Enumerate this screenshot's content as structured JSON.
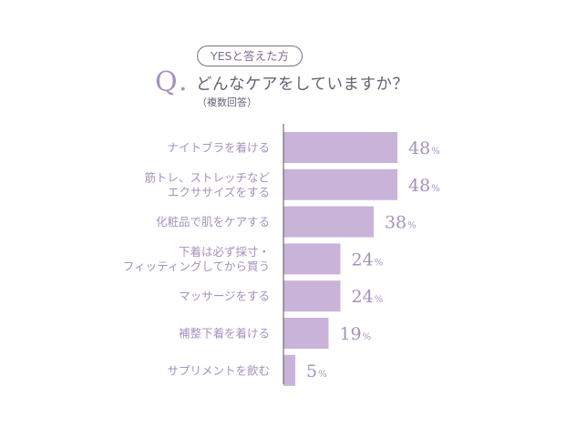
{
  "header": {
    "tag": "YESと答えた方",
    "q_letter": "Q",
    "q_dot": ".",
    "question": "どんなケアをしていますか？",
    "note": "（複数回答）"
  },
  "chart_data": {
    "type": "bar",
    "orientation": "horizontal",
    "categories": [
      [
        "ナイトブラを着ける"
      ],
      [
        "筋トレ、ストレッチなど",
        "エクササイズをする"
      ],
      [
        "化粧品で肌をケアする"
      ],
      [
        "下着は必ず採寸・",
        "フィッティングしてから買う"
      ],
      [
        "マッサージをする"
      ],
      [
        "補整下着を着ける"
      ],
      [
        "サプリメントを飲む"
      ]
    ],
    "values": [
      48,
      48,
      38,
      24,
      24,
      19,
      5
    ],
    "unit": "%",
    "xlim": [
      0,
      100
    ],
    "bar_color": "#c9b3d9",
    "label_color": "#a592be",
    "axis_color": "#555555"
  }
}
